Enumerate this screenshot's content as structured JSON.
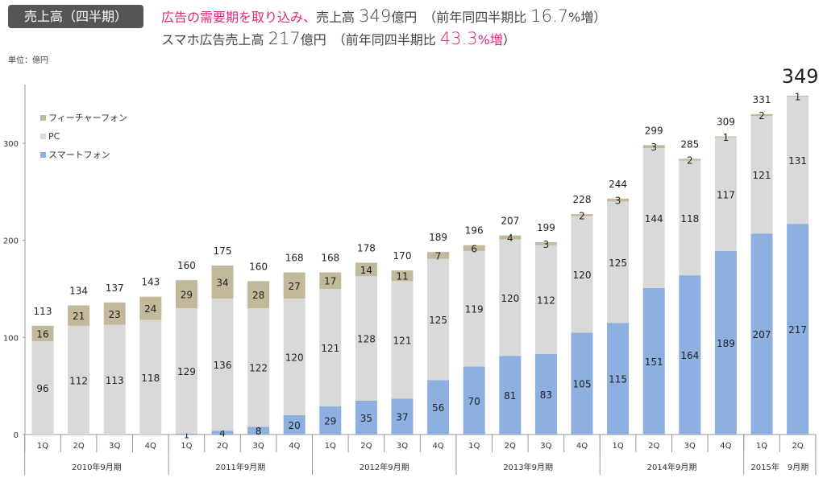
{
  "header": {
    "badge": "売上高（四半期）",
    "line1_pink": "広告の需要期を取り込み、",
    "line1_a": "売上高 ",
    "line1_big": "349",
    "line1_b": "億円　（前年同四半期比 ",
    "line1_big2": "16.7",
    "line1_c": "%増）",
    "line2_a": "スマホ広告売上高 ",
    "line2_big": "217",
    "line2_b": "億円　（前年同四半期比 ",
    "line2_pink_big": "43.3",
    "line2_pink_c": "%増",
    "line2_end": "）"
  },
  "unit_label": "単位：億円",
  "chart_data": {
    "type": "bar",
    "stacked": true,
    "title": "売上高（四半期）",
    "xlabel": "",
    "ylabel": "億円",
    "ylim": [
      0,
      350
    ],
    "yticks": [
      0,
      100,
      200,
      300
    ],
    "legend_position": "top-left",
    "categories": [
      "1Q",
      "2Q",
      "3Q",
      "4Q",
      "1Q",
      "2Q",
      "3Q",
      "4Q",
      "1Q",
      "2Q",
      "3Q",
      "4Q",
      "1Q",
      "2Q",
      "3Q",
      "4Q",
      "1Q",
      "2Q",
      "3Q",
      "4Q",
      "1Q",
      "2Q"
    ],
    "groups": [
      {
        "label": "2010年9月期",
        "count": 4
      },
      {
        "label": "2011年9月期",
        "count": 4
      },
      {
        "label": "2012年9月期",
        "count": 4
      },
      {
        "label": "2013年9月期",
        "count": 4
      },
      {
        "label": "2014年9月期",
        "count": 4
      },
      {
        "label": "2015年　9月期",
        "count": 2
      }
    ],
    "series": [
      {
        "name": "スマートフォン",
        "color": "#8db0e0",
        "values": [
          0,
          0,
          0,
          0,
          1,
          4,
          8,
          20,
          29,
          35,
          37,
          56,
          70,
          81,
          83,
          105,
          115,
          151,
          164,
          189,
          207,
          217
        ],
        "show_labels": [
          false,
          false,
          false,
          false,
          true,
          true,
          true,
          true,
          true,
          true,
          true,
          true,
          true,
          true,
          true,
          true,
          true,
          true,
          true,
          true,
          true,
          true
        ]
      },
      {
        "name": "PC",
        "color": "#d9d9d9",
        "values": [
          96,
          112,
          113,
          118,
          129,
          136,
          122,
          120,
          121,
          128,
          121,
          125,
          119,
          120,
          112,
          120,
          125,
          144,
          118,
          117,
          121,
          131
        ]
      },
      {
        "name": "フィーチャーフォン",
        "color": "#c2b99a",
        "values": [
          16,
          21,
          23,
          24,
          29,
          34,
          28,
          27,
          17,
          14,
          11,
          7,
          6,
          4,
          3,
          2,
          3,
          3,
          2,
          1,
          2,
          1
        ]
      }
    ],
    "totals": [
      113,
      134,
      137,
      143,
      160,
      175,
      160,
      168,
      168,
      178,
      170,
      189,
      196,
      207,
      199,
      228,
      244,
      299,
      285,
      309,
      331,
      349
    ],
    "legend": [
      "フィーチャーフォン",
      "PC",
      "スマートフォン"
    ]
  }
}
